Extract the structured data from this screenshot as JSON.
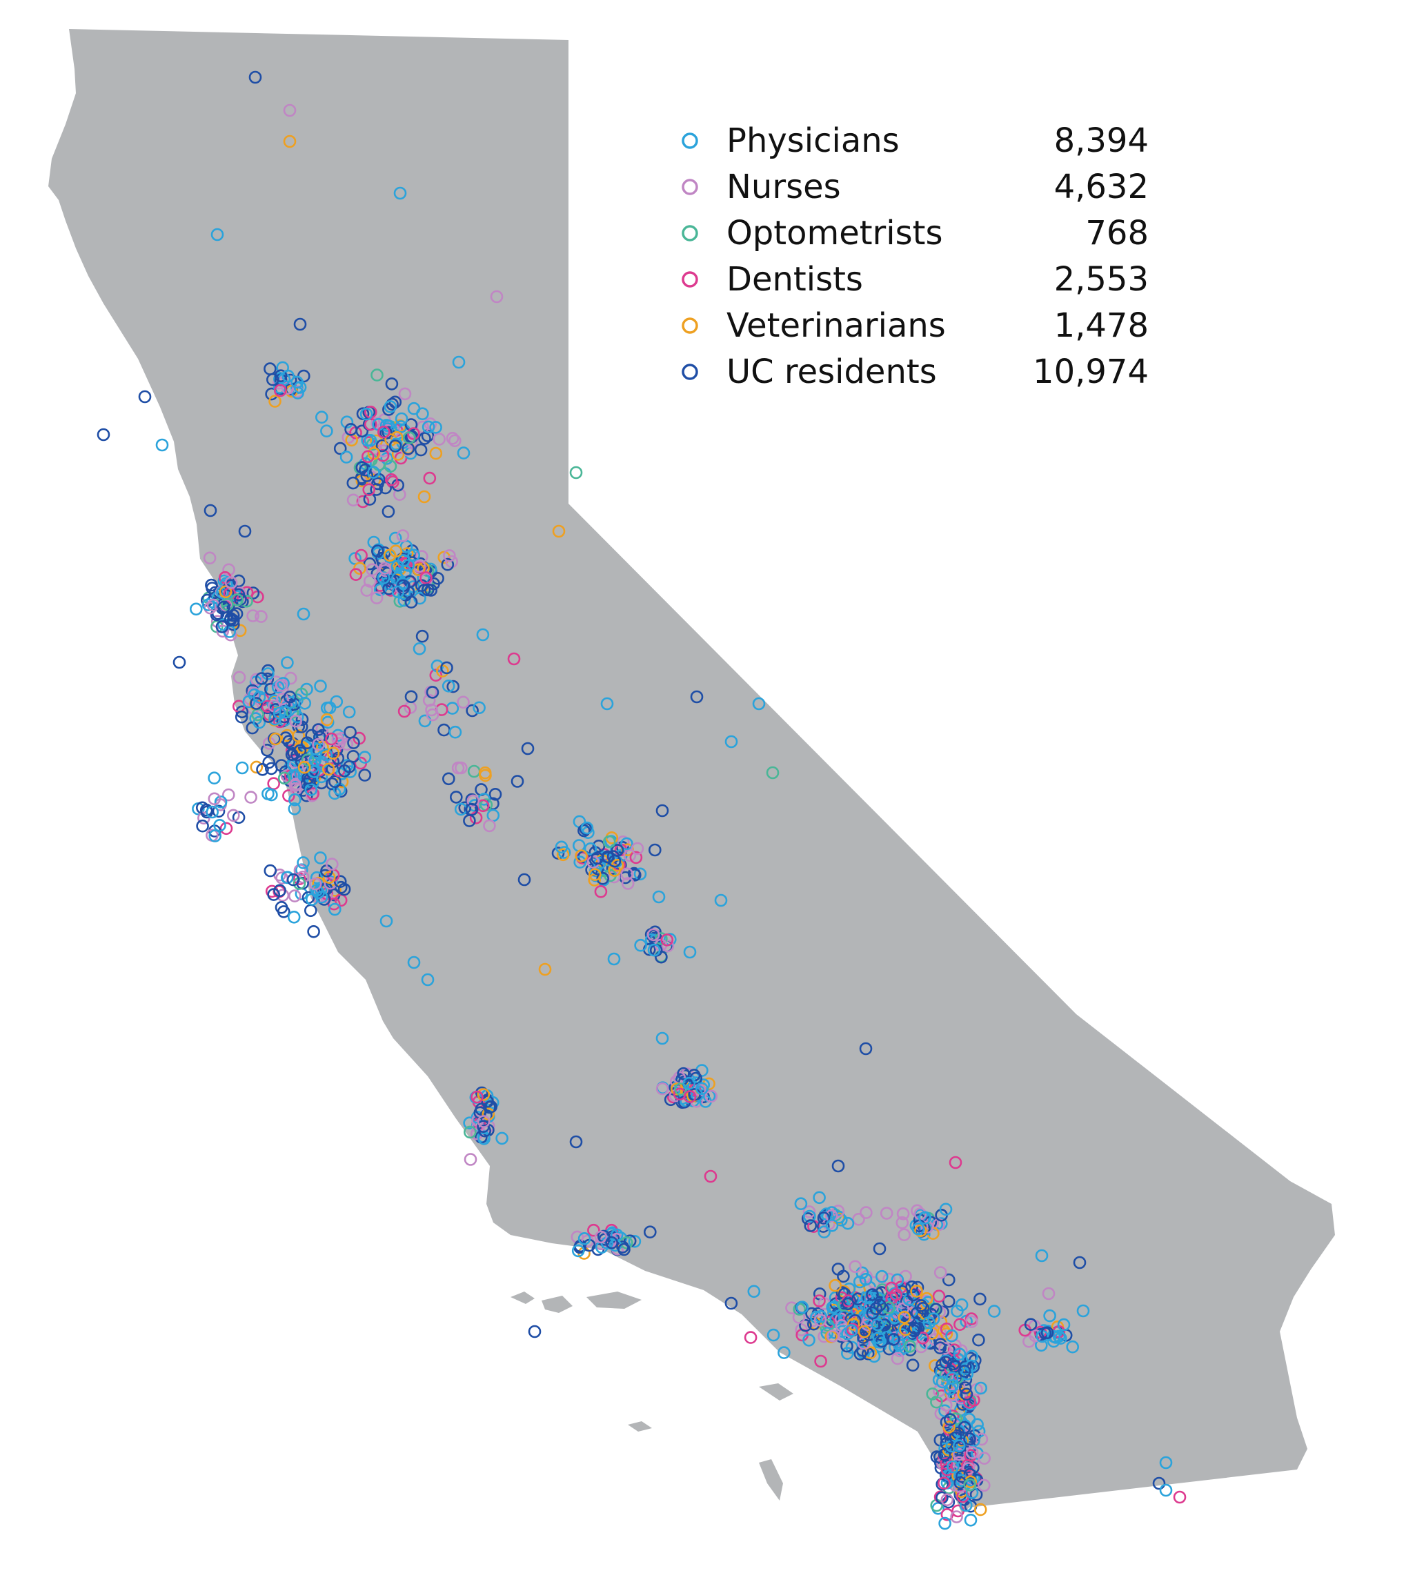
{
  "colors": {
    "land": "#b3b5b7",
    "background": "#ffffff"
  },
  "legend": {
    "items": [
      {
        "label": "Physicians",
        "count": "8,394",
        "color": "#2ba3db",
        "marker": "circle-outline-icon"
      },
      {
        "label": "Nurses",
        "count": "4,632",
        "color": "#c086c4",
        "marker": "circle-outline-icon"
      },
      {
        "label": "Optometrists",
        "count": "768",
        "color": "#4ab697",
        "marker": "circle-outline-icon"
      },
      {
        "label": "Dentists",
        "count": "2,553",
        "color": "#dd3a8f",
        "marker": "circle-outline-icon"
      },
      {
        "label": "Veterinarians",
        "count": "1,478",
        "color": "#eea021",
        "marker": "circle-outline-icon"
      },
      {
        "label": "UC residents",
        "count": "10,974",
        "color": "#1f4ea6",
        "marker": "circle-outline-icon"
      }
    ]
  }
}
